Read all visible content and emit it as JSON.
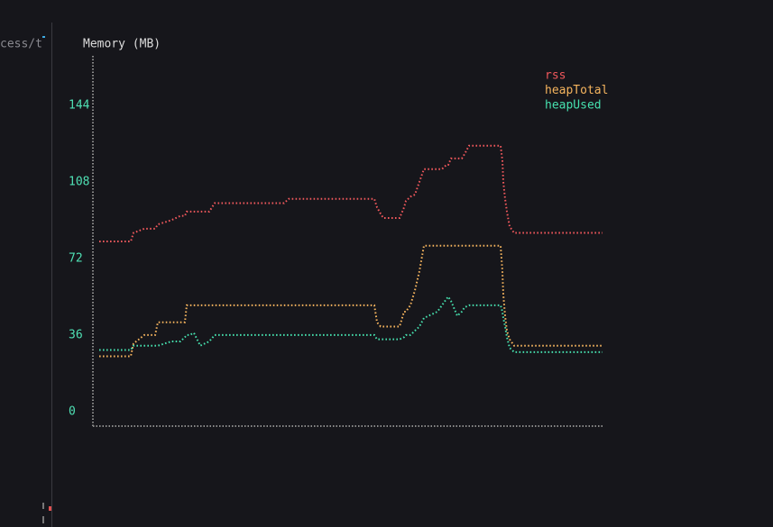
{
  "sidebar_text": "cess/t",
  "chart_data": {
    "type": "line",
    "title": "Memory (MB)",
    "x": [
      0,
      35,
      38,
      50,
      62,
      65,
      80,
      90,
      95,
      97,
      100,
      105,
      112,
      122,
      128,
      205,
      210,
      305,
      308,
      312,
      315,
      333,
      338,
      340,
      345,
      350,
      355,
      360,
      375,
      380,
      385,
      387,
      390,
      397,
      402,
      405,
      410,
      440,
      445,
      447,
      448,
      450,
      452,
      455,
      460,
      558
    ],
    "xlim": [
      -7,
      558
    ],
    "ylim": [
      -7,
      167
    ],
    "yticks": [
      0,
      36,
      72,
      108,
      144
    ],
    "grid": false,
    "legend": "top-right",
    "series": [
      {
        "name": "rss",
        "color": "#f0585c",
        "values": [
          80,
          80,
          84,
          86,
          86,
          88,
          90,
          92,
          92,
          94,
          94,
          94,
          94,
          94,
          98,
          98,
          100,
          100,
          96,
          93,
          91,
          91,
          96,
          99,
          101,
          102,
          108,
          114,
          114,
          114,
          116,
          116,
          119,
          119,
          119,
          121,
          125,
          125,
          125,
          118,
          108,
          100,
          94,
          87,
          84,
          84
        ]
      },
      {
        "name": "heapTotal",
        "color": "#f5b45e",
        "values": [
          26,
          26,
          32,
          36,
          36,
          42,
          42,
          42,
          42,
          50,
          50,
          50,
          50,
          50,
          50,
          50,
          50,
          50,
          42,
          40,
          40,
          40,
          47,
          47,
          50,
          57,
          66,
          78,
          78,
          78,
          78,
          78,
          78,
          78,
          78,
          78,
          78,
          78,
          78,
          66,
          55,
          45,
          38,
          34,
          31,
          31
        ]
      },
      {
        "name": "heapUsed",
        "color": "#46e0ae",
        "values": [
          29,
          29,
          31,
          31,
          31,
          31,
          33,
          33,
          35,
          36,
          36,
          37,
          31,
          33,
          36,
          36,
          36,
          36,
          34,
          34,
          34,
          34,
          35,
          36,
          36,
          38,
          40,
          44,
          47,
          50,
          53,
          54,
          52,
          45,
          47,
          49,
          50,
          50,
          50,
          47,
          44,
          40,
          35,
          30,
          28,
          28
        ]
      }
    ]
  }
}
